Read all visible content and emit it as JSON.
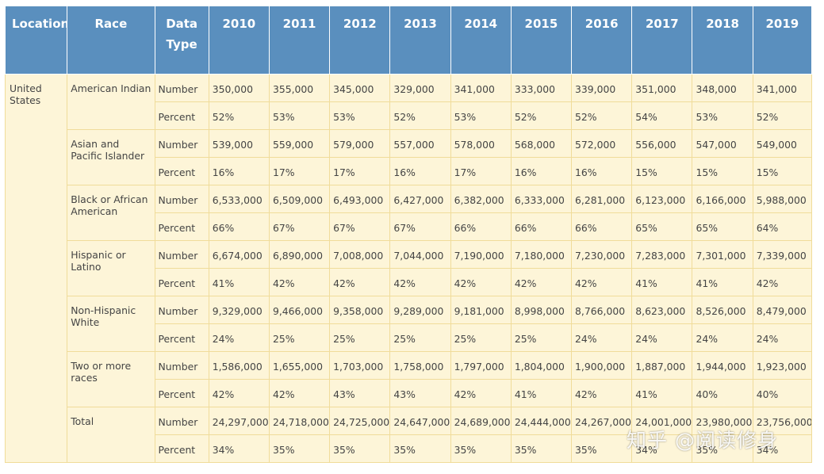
{
  "headers": [
    "Location",
    "Race",
    "Data Type",
    "2010",
    "2011",
    "2012",
    "2013",
    "2014",
    "2015",
    "2016",
    "2017",
    "2018",
    "2019"
  ],
  "location": "United States",
  "groups": [
    {
      "race": "American Indian",
      "rows": [
        {
          "type": "Number",
          "values": [
            "350,000",
            "355,000",
            "345,000",
            "329,000",
            "341,000",
            "333,000",
            "339,000",
            "351,000",
            "348,000",
            "341,000"
          ]
        },
        {
          "type": "Percent",
          "values": [
            "52%",
            "53%",
            "53%",
            "52%",
            "53%",
            "52%",
            "52%",
            "54%",
            "53%",
            "52%"
          ]
        }
      ]
    },
    {
      "race": "Asian and Pacific Islander",
      "rows": [
        {
          "type": "Number",
          "values": [
            "539,000",
            "559,000",
            "579,000",
            "557,000",
            "578,000",
            "568,000",
            "572,000",
            "556,000",
            "547,000",
            "549,000"
          ]
        },
        {
          "type": "Percent",
          "values": [
            "16%",
            "17%",
            "17%",
            "16%",
            "17%",
            "16%",
            "16%",
            "15%",
            "15%",
            "15%"
          ]
        }
      ]
    },
    {
      "race": "Black or African American",
      "rows": [
        {
          "type": "Number",
          "values": [
            "6,533,000",
            "6,509,000",
            "6,493,000",
            "6,427,000",
            "6,382,000",
            "6,333,000",
            "6,281,000",
            "6,123,000",
            "6,166,000",
            "5,988,000"
          ]
        },
        {
          "type": "Percent",
          "values": [
            "66%",
            "67%",
            "67%",
            "67%",
            "66%",
            "66%",
            "66%",
            "65%",
            "65%",
            "64%"
          ]
        }
      ]
    },
    {
      "race": "Hispanic or Latino",
      "rows": [
        {
          "type": "Number",
          "values": [
            "6,674,000",
            "6,890,000",
            "7,008,000",
            "7,044,000",
            "7,190,000",
            "7,180,000",
            "7,230,000",
            "7,283,000",
            "7,301,000",
            "7,339,000"
          ]
        },
        {
          "type": "Percent",
          "values": [
            "41%",
            "42%",
            "42%",
            "42%",
            "42%",
            "42%",
            "42%",
            "41%",
            "41%",
            "42%"
          ]
        }
      ]
    },
    {
      "race": "Non-Hispanic White",
      "rows": [
        {
          "type": "Number",
          "values": [
            "9,329,000",
            "9,466,000",
            "9,358,000",
            "9,289,000",
            "9,181,000",
            "8,998,000",
            "8,766,000",
            "8,623,000",
            "8,526,000",
            "8,479,000"
          ]
        },
        {
          "type": "Percent",
          "values": [
            "24%",
            "25%",
            "25%",
            "25%",
            "25%",
            "25%",
            "24%",
            "24%",
            "24%",
            "24%"
          ]
        }
      ]
    },
    {
      "race": "Two or more races",
      "rows": [
        {
          "type": "Number",
          "values": [
            "1,586,000",
            "1,655,000",
            "1,703,000",
            "1,758,000",
            "1,797,000",
            "1,804,000",
            "1,900,000",
            "1,887,000",
            "1,944,000",
            "1,923,000"
          ]
        },
        {
          "type": "Percent",
          "values": [
            "42%",
            "42%",
            "43%",
            "43%",
            "42%",
            "41%",
            "42%",
            "41%",
            "40%",
            "40%"
          ]
        }
      ]
    },
    {
      "race": "Total",
      "rows": [
        {
          "type": "Number",
          "values": [
            "24,297,000",
            "24,718,000",
            "24,725,000",
            "24,647,000",
            "24,689,000",
            "24,444,000",
            "24,267,000",
            "24,001,000",
            "23,980,000",
            "23,756,000"
          ]
        },
        {
          "type": "Percent",
          "values": [
            "34%",
            "35%",
            "35%",
            "35%",
            "35%",
            "35%",
            "35%",
            "34%",
            "35%",
            "34%"
          ]
        }
      ]
    }
  ],
  "watermark": "知乎 @阅读修身",
  "colors": {
    "header_bg": "#5a8fbe",
    "cell_bg": "#fdf5d8",
    "border": "#f0dc9a",
    "text": "#444444"
  }
}
